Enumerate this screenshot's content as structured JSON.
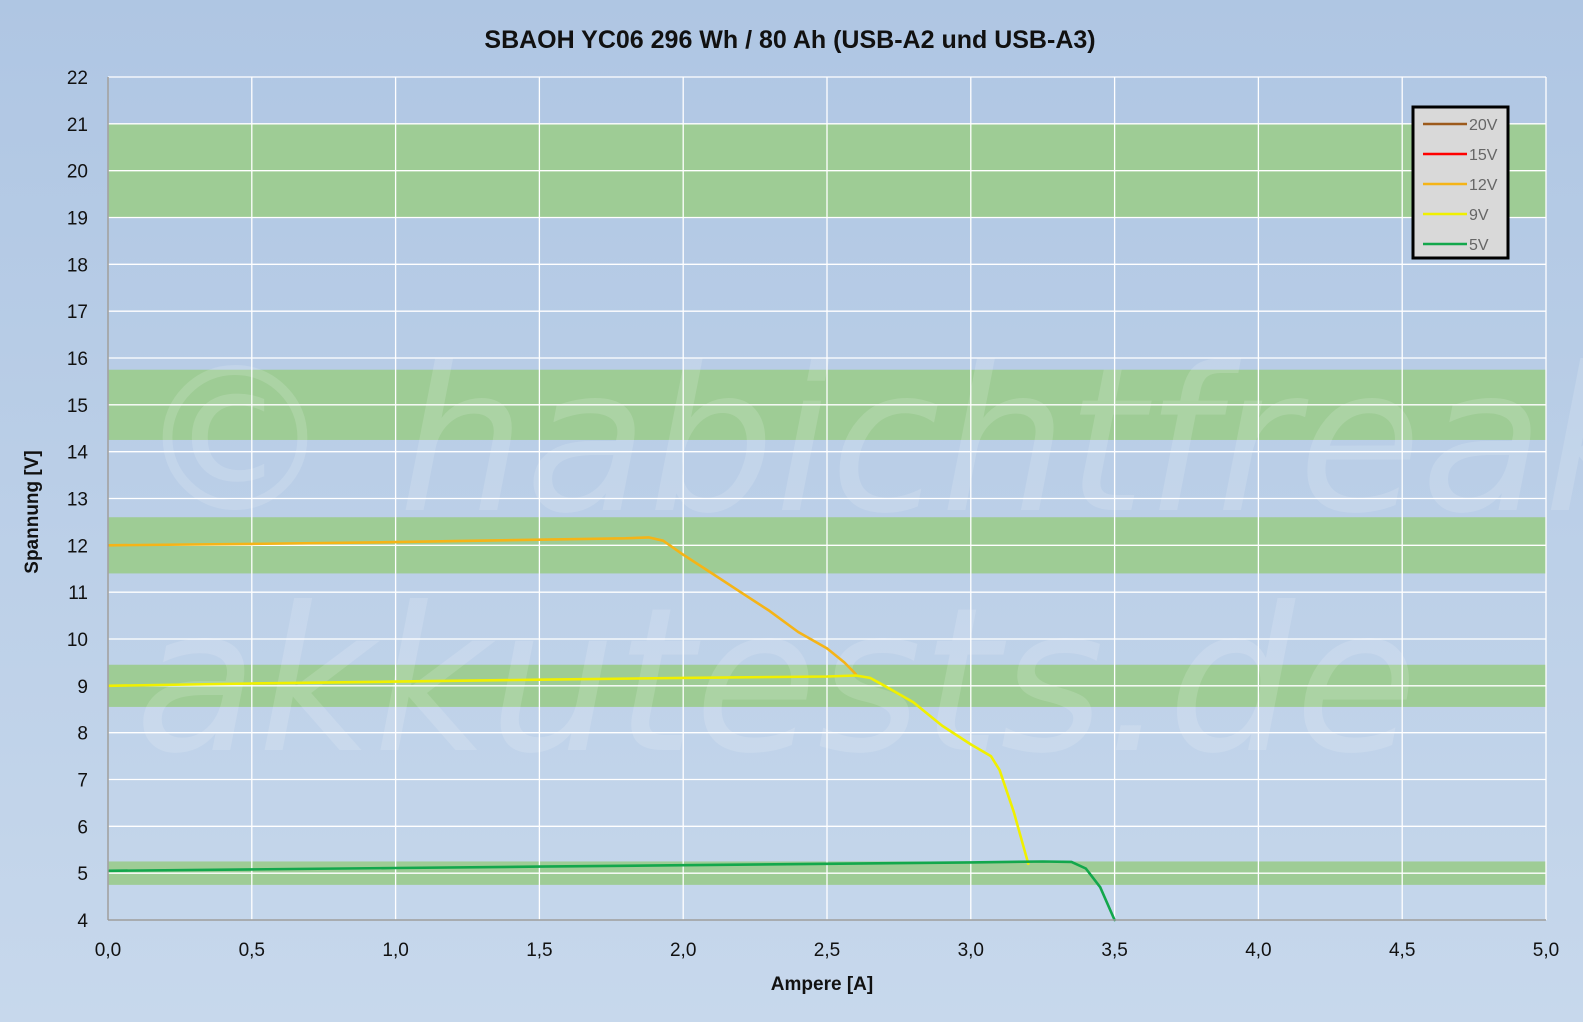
{
  "watermark": {
    "line1": "© habichtfreak",
    "line2": "akkutests.de"
  },
  "colors": {
    "bg_top": "#afc6e3",
    "bg_bottom": "#c7d8ec",
    "grid": "#ffffff",
    "band": "#9ecc95",
    "axis": "#9a9a9a",
    "legend_bg": "#d9d9d9",
    "legend_border": "#000000"
  },
  "chart_data": {
    "type": "line",
    "title": "SBAOH YC06 296 Wh / 80 Ah (USB-A2 und USB-A3)",
    "xlabel": "Ampere [A]",
    "ylabel": "Spannung [V]",
    "xlim": [
      0,
      5
    ],
    "ylim": [
      4,
      22
    ],
    "x_ticks": [
      0,
      0.5,
      1,
      1.5,
      2,
      2.5,
      3,
      3.5,
      4,
      4.5,
      5
    ],
    "x_tick_labels": [
      "0,0",
      "0,5",
      "1,0",
      "1,5",
      "2,0",
      "2,5",
      "3,0",
      "3,5",
      "4,0",
      "4,5",
      "5,0"
    ],
    "y_ticks": [
      4,
      5,
      6,
      7,
      8,
      9,
      10,
      11,
      12,
      13,
      14,
      15,
      16,
      17,
      18,
      19,
      20,
      21,
      22
    ],
    "y_tick_labels": [
      "4",
      "5",
      "6",
      "7",
      "8",
      "9",
      "10",
      "11",
      "12",
      "13",
      "14",
      "15",
      "16",
      "17",
      "18",
      "19",
      "20",
      "21",
      "22"
    ],
    "grid": true,
    "legend_position": "top-right",
    "tolerance_bands": [
      {
        "from": 19.0,
        "to": 21.0
      },
      {
        "from": 14.25,
        "to": 15.75
      },
      {
        "from": 11.4,
        "to": 12.6
      },
      {
        "from": 8.55,
        "to": 9.45
      },
      {
        "from": 4.75,
        "to": 5.25
      }
    ],
    "series": [
      {
        "name": "20V",
        "color": "#9c5a1c",
        "points": []
      },
      {
        "name": "15V",
        "color": "#ff0000",
        "points": []
      },
      {
        "name": "12V",
        "color": "#f5b417",
        "points": [
          [
            0.0,
            12.0
          ],
          [
            0.5,
            12.03
          ],
          [
            1.0,
            12.07
          ],
          [
            1.5,
            12.12
          ],
          [
            1.8,
            12.15
          ],
          [
            1.88,
            12.17
          ],
          [
            1.93,
            12.1
          ],
          [
            2.0,
            11.8
          ],
          [
            2.1,
            11.4
          ],
          [
            2.2,
            11.0
          ],
          [
            2.3,
            10.6
          ],
          [
            2.4,
            10.15
          ],
          [
            2.5,
            9.8
          ],
          [
            2.56,
            9.5
          ],
          [
            2.6,
            9.25
          ]
        ]
      },
      {
        "name": "9V",
        "color": "#f0f000",
        "points": [
          [
            0.0,
            9.0
          ],
          [
            0.5,
            9.05
          ],
          [
            1.0,
            9.09
          ],
          [
            1.5,
            9.13
          ],
          [
            2.0,
            9.17
          ],
          [
            2.5,
            9.2
          ],
          [
            2.6,
            9.22
          ],
          [
            2.65,
            9.17
          ],
          [
            2.7,
            9.0
          ],
          [
            2.8,
            8.65
          ],
          [
            2.9,
            8.15
          ],
          [
            3.0,
            7.75
          ],
          [
            3.07,
            7.5
          ],
          [
            3.1,
            7.2
          ],
          [
            3.15,
            6.3
          ],
          [
            3.2,
            5.2
          ]
        ]
      },
      {
        "name": "5V",
        "color": "#13a74c",
        "points": [
          [
            0.0,
            5.05
          ],
          [
            0.5,
            5.08
          ],
          [
            1.0,
            5.11
          ],
          [
            1.5,
            5.14
          ],
          [
            2.0,
            5.17
          ],
          [
            2.5,
            5.2
          ],
          [
            3.0,
            5.23
          ],
          [
            3.25,
            5.25
          ],
          [
            3.35,
            5.24
          ],
          [
            3.4,
            5.1
          ],
          [
            3.45,
            4.7
          ],
          [
            3.5,
            4.0
          ]
        ]
      }
    ]
  }
}
